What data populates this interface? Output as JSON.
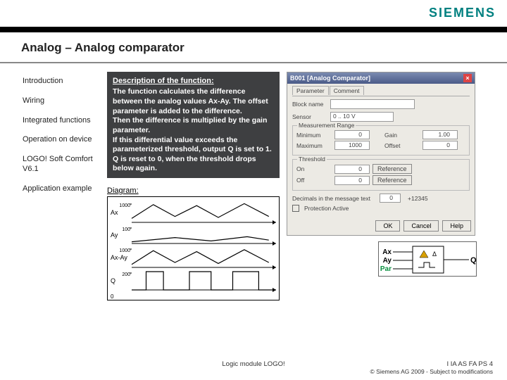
{
  "brand": "SIEMENS",
  "title": "Analog – Analog comparator",
  "sidebar": {
    "items": [
      {
        "label": "Introduction"
      },
      {
        "label": "Wiring"
      },
      {
        "label": "Integrated functions"
      },
      {
        "label": "Operation on device"
      },
      {
        "label": "LOGO! Soft Comfort V6.1"
      },
      {
        "label": "Application example"
      }
    ]
  },
  "description": {
    "heading": "Description of the function:",
    "body": "The function calculates the difference between the analog values Ax-Ay. The offset parameter is added to the difference.\nThen the difference is multiplied by the gain parameter.\nIf this differential value exceeds the parameterized threshold, output Q is set to 1. Q is reset to 0, when the threshold drops below again."
  },
  "diagram": {
    "label": "Diagram:",
    "y_ticks": [
      "1000",
      "100",
      "1000",
      "200"
    ],
    "row_labels": [
      "Ax",
      "Ay",
      "Ax-Ay",
      "Q"
    ],
    "ax_series": {
      "type": "line",
      "color": "#000",
      "points": [
        [
          0,
          0.2
        ],
        [
          0.15,
          0.9
        ],
        [
          0.3,
          0.3
        ],
        [
          0.45,
          0.85
        ],
        [
          0.6,
          0.25
        ],
        [
          0.78,
          0.95
        ],
        [
          0.95,
          0.3
        ]
      ]
    },
    "ay_series": {
      "type": "line",
      "color": "#000",
      "points": [
        [
          0,
          0.1
        ],
        [
          0.3,
          0.35
        ],
        [
          0.55,
          0.15
        ],
        [
          0.8,
          0.4
        ],
        [
          0.95,
          0.2
        ]
      ]
    },
    "diff_series": {
      "type": "line",
      "color": "#000",
      "points": [
        [
          0,
          0.15
        ],
        [
          0.15,
          0.85
        ],
        [
          0.3,
          0.25
        ],
        [
          0.45,
          0.8
        ],
        [
          0.6,
          0.2
        ],
        [
          0.78,
          0.9
        ],
        [
          0.95,
          0.25
        ]
      ]
    },
    "q_series": {
      "type": "step",
      "color": "#000",
      "points": [
        [
          0,
          0
        ],
        [
          0.1,
          0
        ],
        [
          0.1,
          1
        ],
        [
          0.22,
          1
        ],
        [
          0.22,
          0
        ],
        [
          0.4,
          0
        ],
        [
          0.4,
          1
        ],
        [
          0.55,
          1
        ],
        [
          0.55,
          0
        ],
        [
          0.7,
          0
        ],
        [
          0.7,
          1
        ],
        [
          0.88,
          1
        ],
        [
          0.88,
          0
        ],
        [
          1,
          0
        ]
      ]
    }
  },
  "dialog": {
    "title": "B001 [Analog Comparator]",
    "tabs": [
      "Parameter",
      "Comment"
    ],
    "block_name_label": "Block name",
    "block_name": "",
    "sensor_label": "Sensor",
    "sensor_value": "0 .. 10 V",
    "range_group": "Measurement Range",
    "min_label": "Minimum",
    "min_value": "0",
    "max_label": "Maximum",
    "max_value": "1000",
    "gain_label": "Gain",
    "gain_value": "1.00",
    "offset_label": "Offset",
    "offset_value": "0",
    "threshold_group": "Threshold",
    "on_label": "On",
    "on_value": "0",
    "off_label": "Off",
    "off_value": "0",
    "ref_button": "Reference",
    "decimals_label": "Decimals in the message text",
    "decimals_value": "0",
    "decimals_sample": "+12345",
    "protection_label": "Protection Active",
    "ok": "OK",
    "cancel": "Cancel",
    "help": "Help"
  },
  "block": {
    "inputs": [
      "Ax",
      "Ay",
      "Par"
    ],
    "output": "Q",
    "par_color": "#0a9040",
    "icon_color": "#d8a000"
  },
  "footer": {
    "left": "",
    "center": "Logic module LOGO!",
    "right_top": "I IA AS FA PS 4",
    "right_bottom": "© Siemens AG 2009 - Subject to modifications"
  }
}
